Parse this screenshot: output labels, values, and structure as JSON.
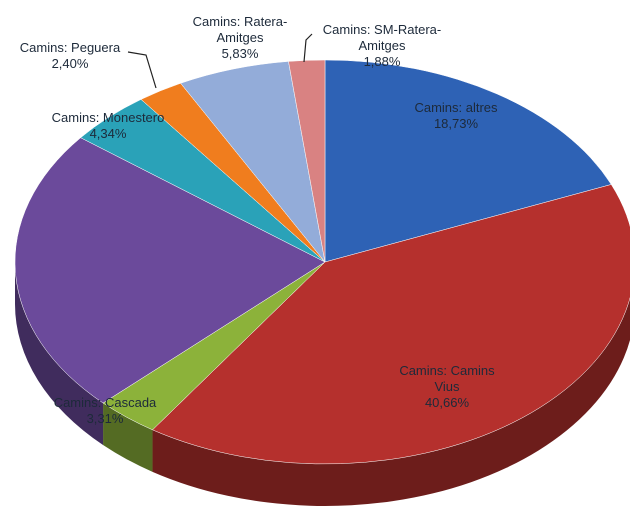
{
  "chart_data": {
    "type": "pie3d",
    "categories": [
      "Camins: altres",
      "Camins: Camins Vius",
      "Camins: Cascada",
      null,
      "Camins: Monestero",
      "Camins: Peguera",
      "Camins: Ratera-Amitges",
      "Camins: SM-Ratera-Amitges"
    ],
    "values": [
      18.73,
      40.66,
      3.31,
      22.85,
      4.34,
      2.4,
      5.83,
      1.88
    ],
    "value_labels": [
      "18,73%",
      "40,66%",
      "3,31%",
      null,
      "4,34%",
      "2,40%",
      "5,83%",
      "1,88%"
    ],
    "colors": [
      "#2e62b5",
      "#b5302d",
      "#8cb23a",
      "#6b4a9b",
      "#2aa2b8",
      "#f07d1e",
      "#93acd9",
      "#d98282"
    ]
  }
}
